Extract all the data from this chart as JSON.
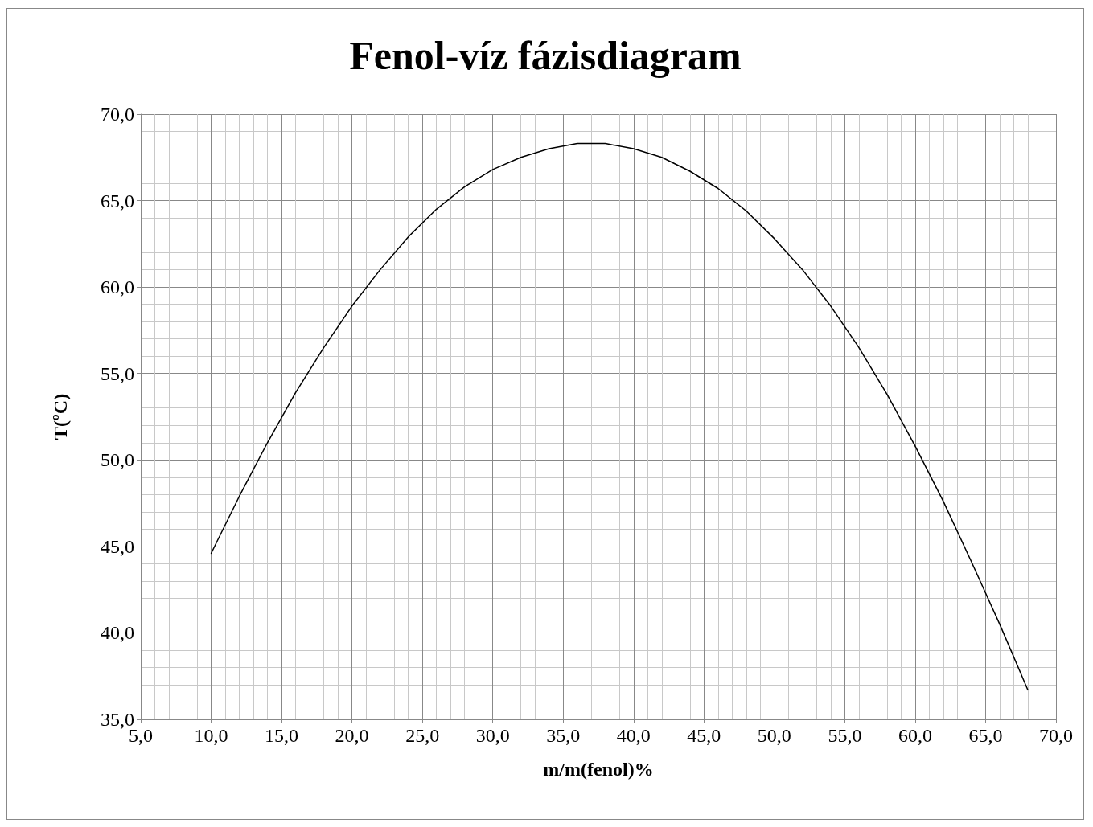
{
  "chart_data": {
    "type": "line",
    "title": "Fenol-víz fázisdiagram",
    "xlabel": "m/m(fenol)%",
    "ylabel": "T(ºC)",
    "x": [
      10,
      12,
      14,
      16,
      18,
      20,
      22,
      24,
      26,
      28,
      30,
      32,
      34,
      36,
      37,
      38,
      40,
      42,
      44,
      46,
      48,
      50,
      52,
      54,
      56,
      58,
      60,
      62,
      64,
      66,
      68
    ],
    "series": [
      {
        "color": "#000000",
        "values": [
          44.6,
          47.9,
          51.0,
          53.9,
          56.5,
          58.9,
          61.0,
          62.9,
          64.5,
          65.8,
          66.8,
          67.5,
          68.0,
          68.3,
          68.3,
          68.3,
          68.0,
          67.5,
          66.7,
          65.7,
          64.4,
          62.8,
          61.0,
          58.9,
          56.5,
          53.8,
          50.8,
          47.6,
          44.1,
          40.5,
          36.7
        ]
      }
    ],
    "xlim": [
      5,
      70
    ],
    "ylim": [
      35,
      70
    ],
    "xticks": [
      {
        "value": 5,
        "label": "5,0"
      },
      {
        "value": 10,
        "label": "10,0"
      },
      {
        "value": 15,
        "label": "15,0"
      },
      {
        "value": 20,
        "label": "20,0"
      },
      {
        "value": 25,
        "label": "25,0"
      },
      {
        "value": 30,
        "label": "30,0"
      },
      {
        "value": 35,
        "label": "35,0"
      },
      {
        "value": 40,
        "label": "40,0"
      },
      {
        "value": 45,
        "label": "45,0"
      },
      {
        "value": 50,
        "label": "50,0"
      },
      {
        "value": 55,
        "label": "55,0"
      },
      {
        "value": 60,
        "label": "60,0"
      },
      {
        "value": 65,
        "label": "65,0"
      },
      {
        "value": 70,
        "label": "70,0"
      }
    ],
    "yticks": [
      {
        "value": 35,
        "label": "35,0"
      },
      {
        "value": 40,
        "label": "40,0"
      },
      {
        "value": 45,
        "label": "45,0"
      },
      {
        "value": 50,
        "label": "50,0"
      },
      {
        "value": 55,
        "label": "55,0"
      },
      {
        "value": 60,
        "label": "60,0"
      },
      {
        "value": 65,
        "label": "65,0"
      },
      {
        "value": 70,
        "label": "70,0"
      }
    ],
    "grid": true,
    "marker": "none",
    "line_style": "solid"
  }
}
